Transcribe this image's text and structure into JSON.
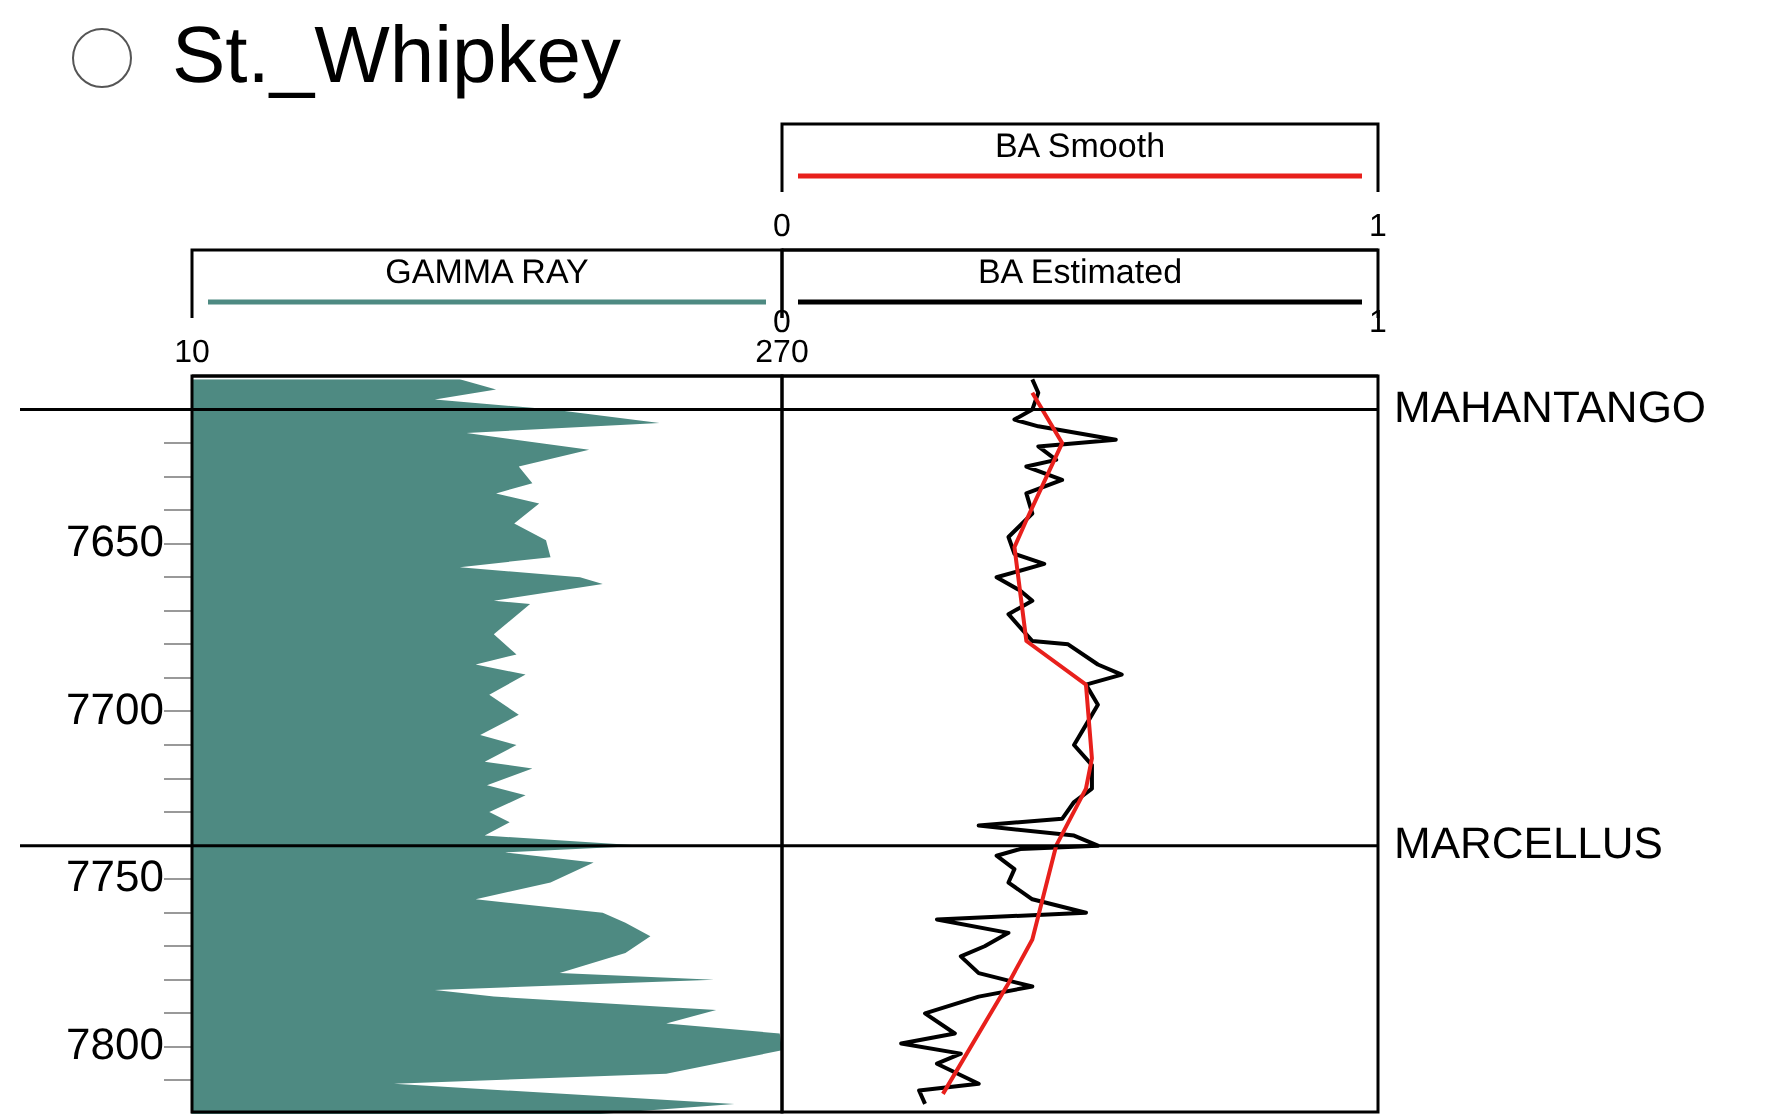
{
  "chart_data": [
    {
      "type": "area",
      "title": "St._Whipkey",
      "orientation": "horizontal",
      "xlim": [
        10,
        270
      ],
      "xticks": [
        10,
        270
      ],
      "ylim": [
        7820,
        7600
      ],
      "yticks": [
        {
          "value": 7610,
          "label": null
        },
        {
          "value": 7620,
          "label": null
        },
        {
          "value": 7630,
          "label": null
        },
        {
          "value": 7640,
          "label": null
        },
        7650,
        {
          "value": 7660,
          "label": null
        },
        {
          "value": 7670,
          "label": null
        },
        {
          "value": 7680,
          "label": null
        },
        {
          "value": 7690,
          "label": null
        },
        7700,
        {
          "value": 7710,
          "label": null
        },
        {
          "value": 7720,
          "label": null
        },
        {
          "value": 7730,
          "label": null
        },
        {
          "value": 7740,
          "label": null
        },
        7750,
        {
          "value": 7760,
          "label": null
        },
        {
          "value": 7770,
          "label": null
        },
        {
          "value": 7780,
          "label": null
        },
        {
          "value": 7790,
          "label": null
        },
        7800,
        {
          "value": 7810,
          "label": null
        }
      ],
      "grid": false,
      "legend": "top",
      "ref_lines": [
        {
          "axis": "y",
          "value": 7610
        },
        {
          "axis": "y",
          "value": 7740
        }
      ],
      "series": [
        {
          "name": "GAMMA RAY",
          "color": "#4e8a82",
          "x": [
            7601,
            7604,
            7607,
            7610,
            7614,
            7617,
            7622,
            7627,
            7632,
            7635,
            7638,
            7644,
            7649,
            7654,
            7657,
            7660,
            7662,
            7667,
            7668,
            7677,
            7683,
            7686,
            7689,
            7695,
            7701,
            7707,
            7710,
            7715,
            7717,
            7722,
            7725,
            7730,
            7733,
            7737,
            7740,
            7742,
            7745,
            7751,
            7756,
            7760,
            7763,
            7767,
            7772,
            7778,
            7780,
            7783,
            7785,
            7789,
            7793,
            7796,
            7801,
            7808,
            7811,
            7817,
            7820
          ],
          "values": [
            128,
            144,
            117,
            169,
            216,
            131,
            185,
            154,
            160,
            144,
            163,
            152,
            166,
            168,
            128,
            181,
            191,
            143,
            159,
            143,
            153,
            135,
            157,
            141,
            154,
            137,
            153,
            139,
            160,
            140,
            157,
            141,
            150,
            139,
            209,
            148,
            187,
            168,
            135,
            191,
            201,
            212,
            201,
            172,
            240,
            117,
            143,
            241,
            219,
            269,
            270,
            219,
            99,
            249,
            190
          ]
        }
      ]
    },
    {
      "type": "line",
      "orientation": "horizontal",
      "xlim": [
        0,
        1
      ],
      "xticks": [
        0,
        1
      ],
      "x2lim": [
        0,
        1
      ],
      "x2ticks": [
        0,
        1
      ],
      "ylim": [
        7820,
        7600
      ],
      "tick_labels": "x",
      "grid": false,
      "legend": "top",
      "ref_lines": [
        {
          "axis": "y",
          "value": 7610,
          "label": "MAHANTANGO"
        },
        {
          "axis": "y",
          "value": 7740,
          "label": "MARCELLUS"
        }
      ],
      "series": [
        {
          "name": "BA Smooth",
          "color": "#e8201c",
          "axis": "x2",
          "x": [
            7605,
            7620,
            7643,
            7651,
            7679,
            7692,
            7714,
            7723,
            7740,
            7768,
            7781,
            7814
          ],
          "values": [
            0.42,
            0.47,
            0.41,
            0.39,
            0.41,
            0.51,
            0.52,
            0.51,
            0.46,
            0.42,
            0.38,
            0.27
          ]
        },
        {
          "name": "BA Estimated",
          "color": "#000000",
          "x": [
            7601,
            7605,
            7610,
            7613,
            7615,
            7619,
            7621,
            7625,
            7627,
            7631,
            7635,
            7641,
            7648,
            7653,
            7656,
            7660,
            7664,
            7667,
            7671,
            7679,
            7680,
            7686,
            7689,
            7692,
            7698,
            7704,
            7710,
            7716,
            7723,
            7727,
            7732,
            7734,
            7737,
            7740,
            7741,
            7743,
            7747,
            7751,
            7756,
            7760,
            7762,
            7766,
            7770,
            7773,
            7778,
            7782,
            7785,
            7790,
            7796,
            7799,
            7802,
            7805,
            7811,
            7813,
            7817
          ],
          "values": [
            0.42,
            0.43,
            0.42,
            0.39,
            0.43,
            0.56,
            0.43,
            0.46,
            0.41,
            0.47,
            0.41,
            0.42,
            0.38,
            0.39,
            0.44,
            0.36,
            0.4,
            0.42,
            0.38,
            0.42,
            0.48,
            0.53,
            0.57,
            0.51,
            0.53,
            0.51,
            0.49,
            0.52,
            0.52,
            0.49,
            0.47,
            0.33,
            0.49,
            0.53,
            0.4,
            0.36,
            0.39,
            0.38,
            0.42,
            0.51,
            0.26,
            0.38,
            0.34,
            0.3,
            0.33,
            0.42,
            0.33,
            0.24,
            0.29,
            0.2,
            0.3,
            0.26,
            0.33,
            0.23,
            0.24
          ]
        }
      ]
    }
  ]
}
